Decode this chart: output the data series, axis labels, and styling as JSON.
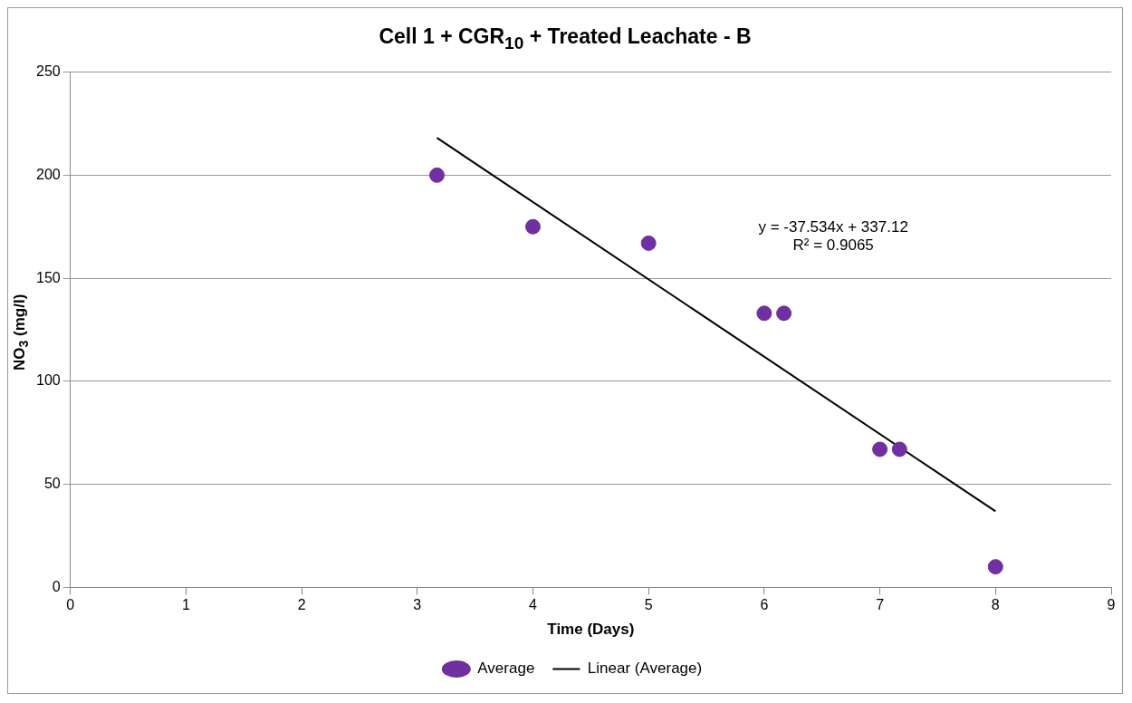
{
  "chart_data": {
    "type": "scatter",
    "title": "Cell 1 + CGR$_{10}$ + Treated Leachate - B",
    "xlabel": "Time (Days)",
    "ylabel": "NO$_{3}$ (mg/l)",
    "series": [
      {
        "name": "Average",
        "type": "scatter",
        "color": "#7030a0",
        "marker": "circle",
        "x": [
          3.17,
          4,
          5,
          6,
          6.17,
          7,
          7.17,
          8
        ],
        "values": [
          200,
          175,
          167,
          133,
          133,
          67,
          67,
          10
        ]
      },
      {
        "name": "Linear (Average)",
        "type": "line",
        "color": "#000000",
        "marker": "none",
        "line_style": "solid",
        "x": [
          3.17,
          8
        ],
        "values": [
          218.1,
          36.9
        ]
      }
    ],
    "xlim": [
      0,
      9
    ],
    "xticks": [
      0,
      1,
      2,
      3,
      4,
      5,
      6,
      7,
      8,
      9
    ],
    "ylim": [
      0,
      250
    ],
    "yticks": [
      0,
      50,
      100,
      150,
      200,
      250
    ],
    "grid": "y",
    "legend": "bottom",
    "annotations": [
      "y = -37.534x + 337.12",
      "R² = 0.9065"
    ]
  }
}
